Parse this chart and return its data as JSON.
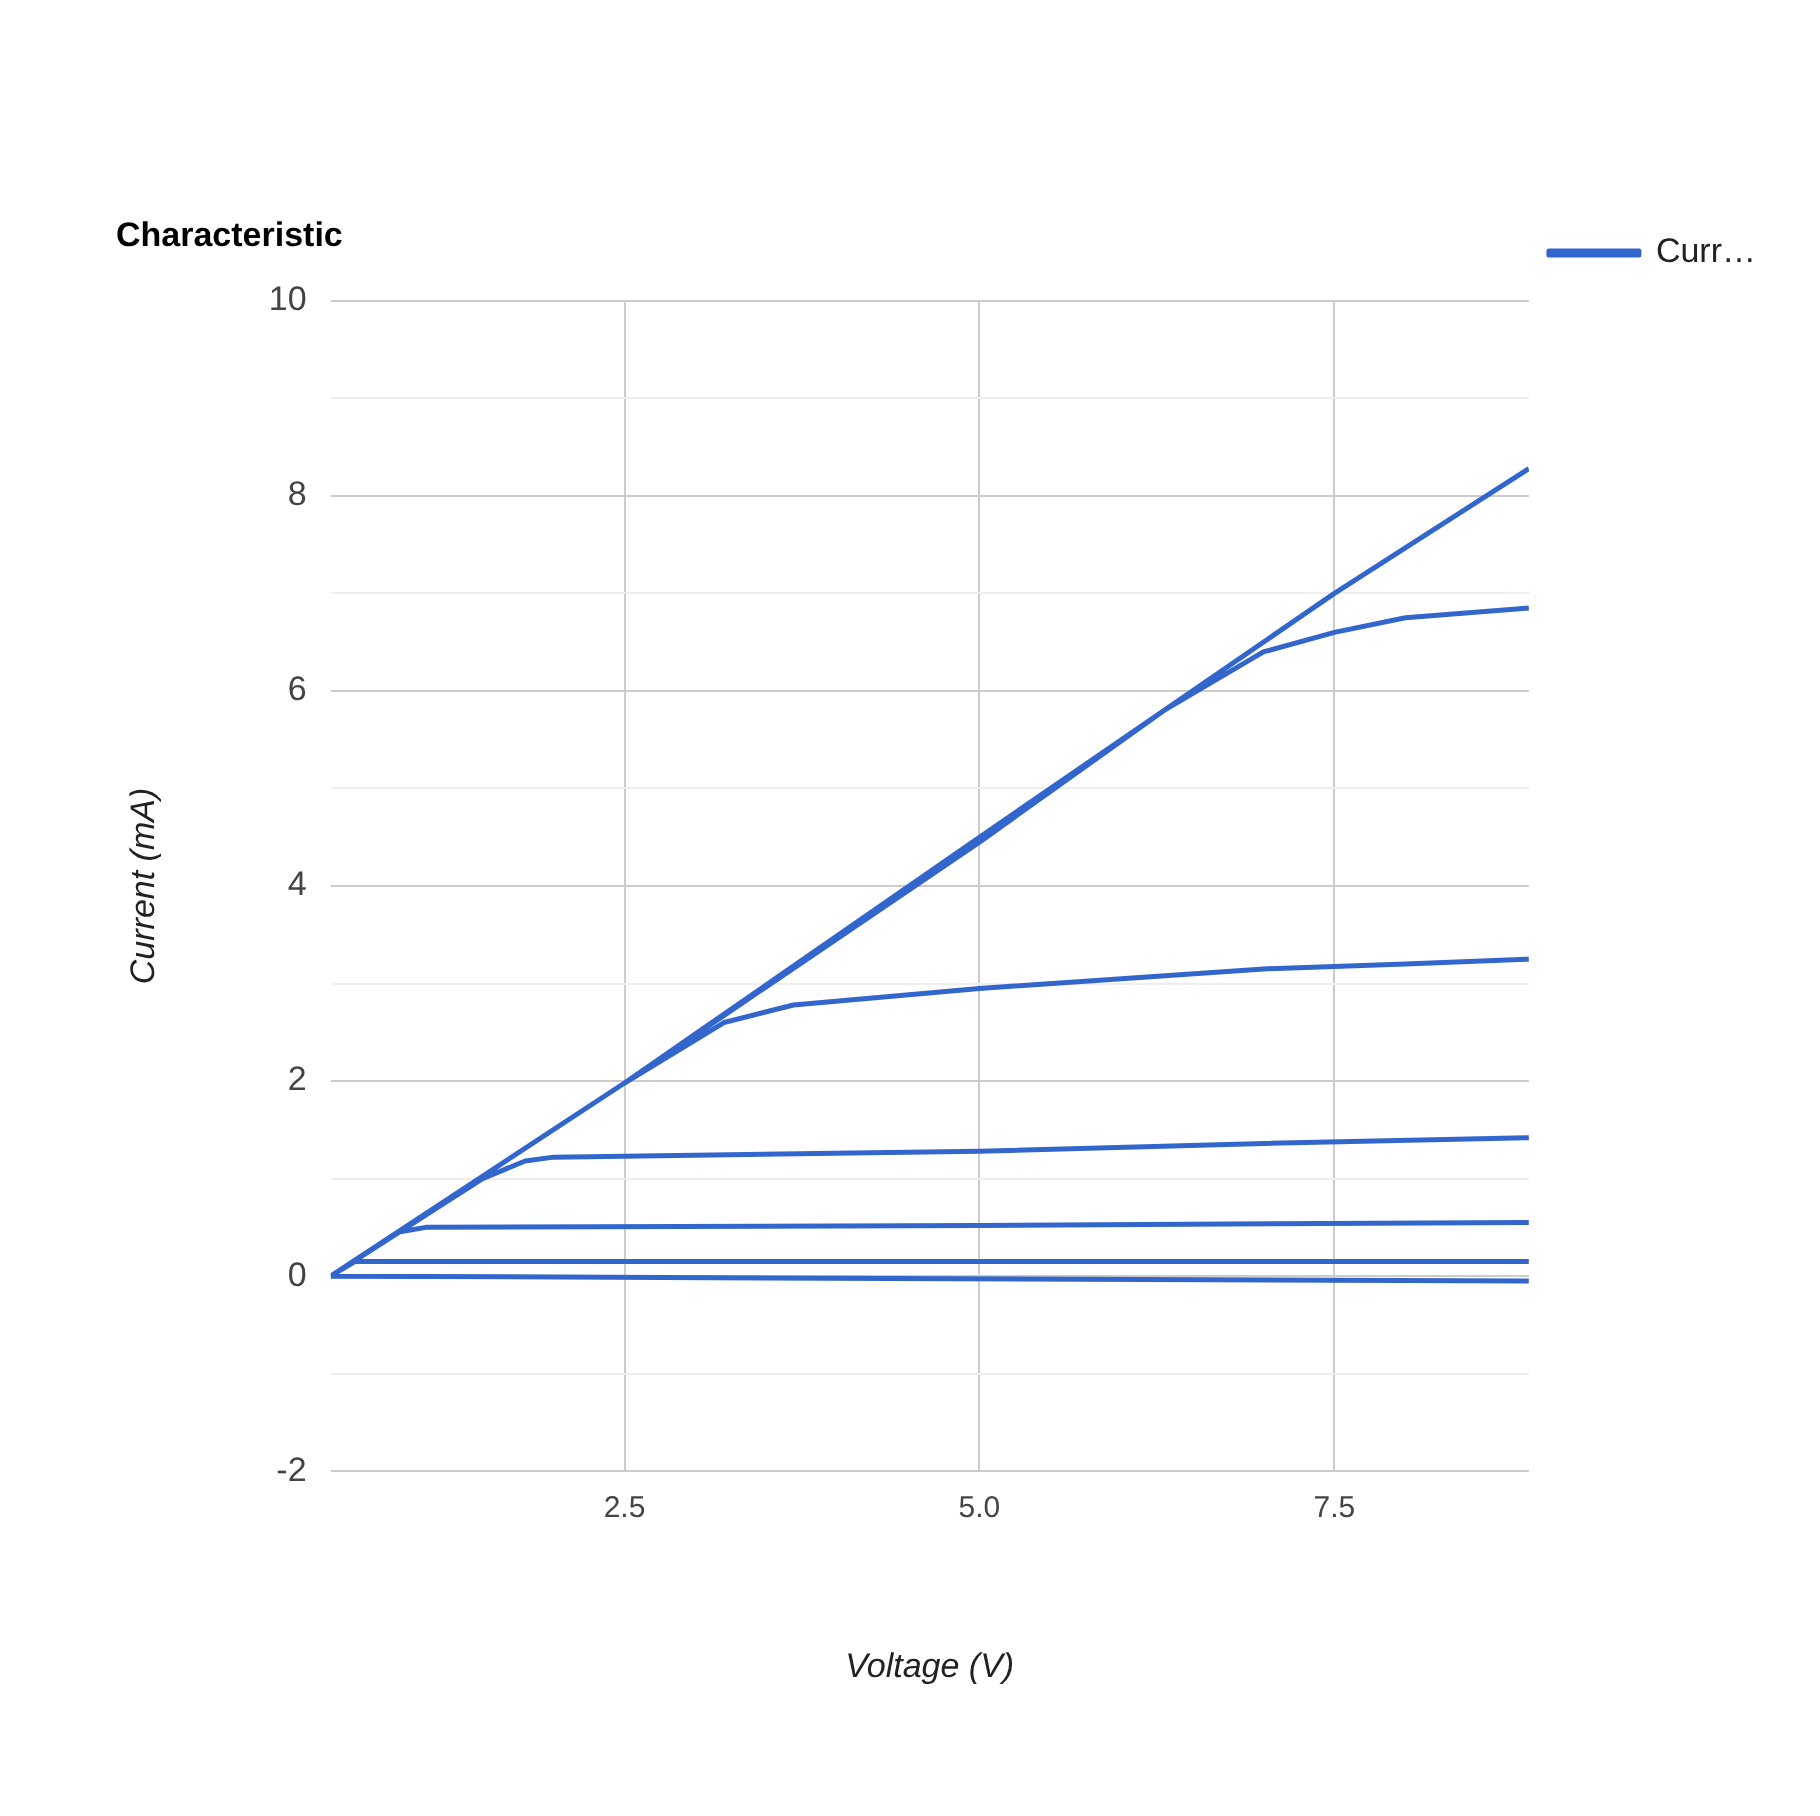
{
  "chart_data": {
    "type": "line",
    "title": "Characteristic",
    "xlabel": "Voltage (V)",
    "ylabel": "Current (mA)",
    "series": [
      {
        "name": "Curr…",
        "color": "#3366cc",
        "x": [
          0.43,
          2.5,
          5.0,
          7.5,
          8.87,
          null,
          0.43,
          2.5,
          5.0,
          6.3,
          7.0,
          7.5,
          8.0,
          8.87,
          null,
          0.43,
          2.5,
          3.2,
          3.69,
          5.0,
          6.0,
          7.0,
          8.0,
          8.87,
          null,
          0.43,
          1.5,
          1.8,
          2.0,
          5.0,
          7.0,
          8.87,
          null,
          0.43,
          0.9,
          1.1,
          5.0,
          8.87,
          null,
          0.43,
          0.6,
          8.87,
          null,
          0.43,
          8.87
        ],
        "values": [
          0,
          1.98,
          4.5,
          7.0,
          8.28,
          null,
          0,
          1.98,
          4.45,
          5.8,
          6.4,
          6.6,
          6.75,
          6.85,
          null,
          0,
          1.98,
          2.6,
          2.78,
          2.95,
          3.05,
          3.15,
          3.2,
          3.25,
          null,
          0,
          1.0,
          1.18,
          1.22,
          1.28,
          1.36,
          1.42,
          null,
          0,
          0.45,
          0.5,
          0.52,
          0.55,
          null,
          0,
          0.15,
          0.15,
          null,
          0,
          -0.05
        ]
      }
    ],
    "xlim": [
      0.43,
      8.87
    ],
    "xticks": [
      {
        "value": 2.5,
        "label": "2.5"
      },
      {
        "value": 5,
        "label": "5.0"
      },
      {
        "value": 7.5,
        "label": "7.5"
      }
    ],
    "ylim": [
      -2,
      10
    ],
    "yticks": [
      -2,
      {
        "value": -1,
        "label": null
      },
      0,
      {
        "value": 1,
        "label": null
      },
      2,
      {
        "value": 3,
        "label": null
      },
      4,
      {
        "value": 5,
        "label": null
      },
      6,
      {
        "value": 7,
        "label": null
      },
      8,
      {
        "value": 9,
        "label": null
      },
      10
    ],
    "grid": true,
    "legend": "top right",
    "marker": "none",
    "line_style": "solid"
  }
}
